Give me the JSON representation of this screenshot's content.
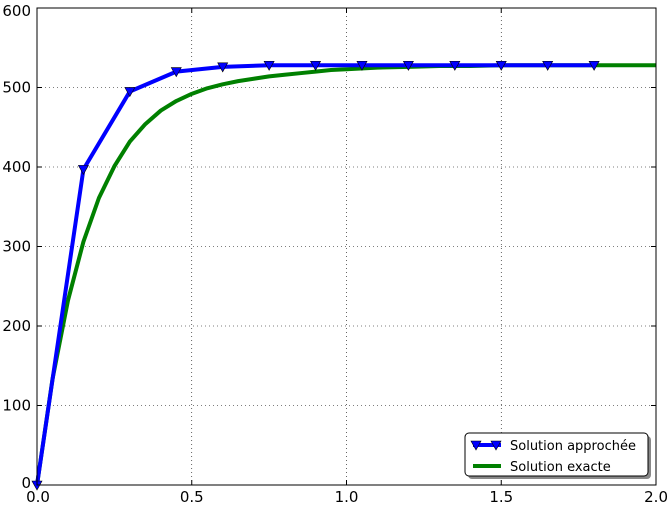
{
  "chart_data": {
    "type": "line",
    "xlim": [
      0.0,
      2.0
    ],
    "ylim": [
      0,
      600
    ],
    "x_ticks": [
      "0.0",
      "0.5",
      "1.0",
      "1.5",
      "2.0"
    ],
    "y_ticks": [
      "0",
      "100",
      "200",
      "300",
      "400",
      "500",
      "600"
    ],
    "grid": true,
    "legend_position": "bottom-right",
    "series": [
      {
        "name": "Solution approchée",
        "color": "#0000ff",
        "marker": "triangle-down",
        "x": [
          0.0,
          0.15,
          0.3,
          0.45,
          0.6,
          0.75,
          0.9,
          1.05,
          1.2,
          1.35,
          1.5,
          1.65,
          1.8
        ],
        "y": [
          0,
          397,
          495,
          520,
          526,
          528,
          528,
          528,
          528,
          528,
          528,
          528,
          528
        ]
      },
      {
        "name": "Solution exacte",
        "color": "#008000",
        "marker": "none",
        "x": [
          0.0,
          0.05,
          0.1,
          0.15,
          0.2,
          0.25,
          0.3,
          0.35,
          0.4,
          0.45,
          0.5,
          0.55,
          0.6,
          0.65,
          0.7,
          0.75,
          0.8,
          0.85,
          0.9,
          0.95,
          1.0,
          1.1,
          1.2,
          1.3,
          1.4,
          1.5,
          1.6,
          1.7,
          1.8,
          1.9,
          2.0
        ],
        "y": [
          0,
          133,
          232,
          306,
          361,
          401,
          432,
          454,
          471,
          483,
          492,
          499,
          504,
          508,
          511,
          514,
          516,
          518,
          520,
          522,
          523,
          525,
          526,
          527,
          527,
          528,
          528,
          528,
          528,
          528,
          528
        ]
      }
    ]
  }
}
